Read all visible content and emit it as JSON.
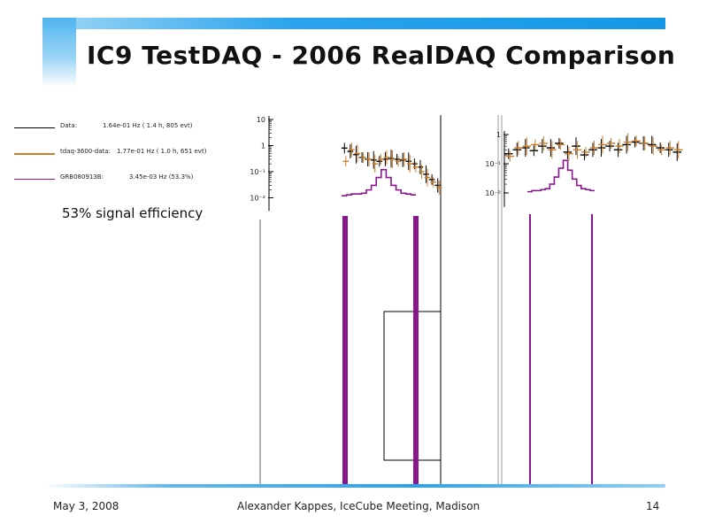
{
  "slide": {
    "title": "IC9 TestDAQ - 2006 RealDAQ Comparison",
    "date": "May 3, 2008",
    "author": "Alexander Kappes, IceCube Meeting, Madison",
    "page_number": "14",
    "annotation": "53% signal efficiency",
    "accent_color": "#1597e8"
  },
  "legend": [
    {
      "label": "Data:",
      "value": "1.64e-01 Hz ( 1.4 h, 805 evt)",
      "color": "#000000"
    },
    {
      "label": "tdaq-3600-data:",
      "value": "1.77e-01 Hz ( 1.0 h, 651 evt)",
      "color": "#c87d2a"
    },
    {
      "label": "GRB080913B:",
      "value": "3.45e-03 Hz (53.3%)",
      "color": "#8b158f"
    }
  ],
  "chart_data": [
    {
      "type": "histogram",
      "panel": "left",
      "yscale": "log",
      "ylim": [
        0.005,
        10
      ],
      "y_ticks": [
        {
          "v": 10,
          "label": "10"
        },
        {
          "v": 1,
          "label": "1"
        },
        {
          "v": 0.1,
          "label": "10⁻¹"
        },
        {
          "v": 0.01,
          "label": "10⁻²"
        }
      ],
      "series": [
        {
          "name": "Data:",
          "values": [
            0.8,
            0.6,
            0.45,
            0.35,
            0.3,
            0.28,
            0.25,
            0.3,
            0.32,
            0.3,
            0.28,
            0.25,
            0.2,
            0.15,
            0.08,
            0.05,
            0.03
          ]
        },
        {
          "name": "tdaq-3600-data:",
          "values": [
            0.25,
            0.7,
            0.5,
            0.35,
            0.3,
            0.2,
            0.3,
            0.35,
            0.3,
            0.25,
            0.3,
            0.2,
            0.15,
            0.1,
            0.06,
            0.04,
            0.025
          ]
        },
        {
          "name": "GRB080913B:",
          "values": [
            0.012,
            0.013,
            0.014,
            0.014,
            0.015,
            0.02,
            0.03,
            0.06,
            0.12,
            0.06,
            0.03,
            0.02,
            0.015,
            0.014,
            0.013
          ]
        }
      ]
    },
    {
      "type": "histogram",
      "panel": "right",
      "yscale": "log",
      "ylim": [
        0.005,
        3
      ],
      "y_ticks": [
        {
          "v": 1,
          "label": "1"
        },
        {
          "v": 0.1,
          "label": "10⁻¹"
        },
        {
          "v": 0.01,
          "label": "10⁻²"
        }
      ],
      "series": [
        {
          "name": "Data:",
          "values": [
            0.22,
            0.3,
            0.35,
            0.28,
            0.4,
            0.35,
            0.5,
            0.25,
            0.4,
            0.2,
            0.3,
            0.35,
            0.4,
            0.3,
            0.45,
            0.55,
            0.5,
            0.45,
            0.35,
            0.3,
            0.25
          ]
        },
        {
          "name": "tdaq-3600-data:",
          "values": [
            0.18,
            0.35,
            0.4,
            0.45,
            0.5,
            0.3,
            0.45,
            0.22,
            0.3,
            0.25,
            0.35,
            0.45,
            0.5,
            0.4,
            0.55,
            0.6,
            0.5,
            0.4,
            0.3,
            0.35,
            0.3
          ]
        },
        {
          "name": "GRB080913B:",
          "values": [
            0.011,
            0.012,
            0.012,
            0.013,
            0.014,
            0.02,
            0.035,
            0.07,
            0.13,
            0.06,
            0.03,
            0.018,
            0.014,
            0.013,
            0.012
          ]
        }
      ]
    }
  ]
}
